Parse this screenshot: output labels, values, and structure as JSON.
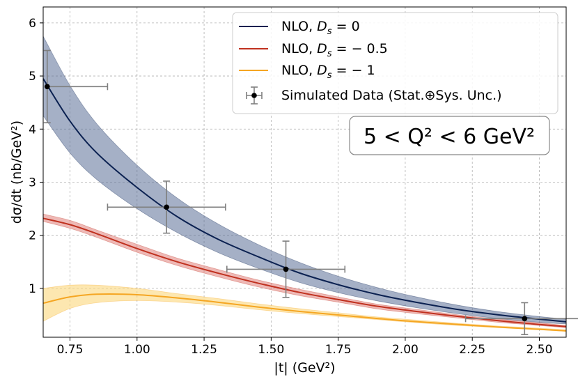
{
  "chart_data": {
    "type": "line",
    "xlabel": "|t| (GeV²)",
    "ylabel": "dσ/dt (nb/GeV²)",
    "xlim": [
      0.65,
      2.6
    ],
    "ylim": [
      0.08,
      6.3
    ],
    "xticks": [
      0.75,
      1.0,
      1.25,
      1.5,
      1.75,
      2.0,
      2.25,
      2.5
    ],
    "xtick_labels": [
      "0.75",
      "1.00",
      "1.25",
      "1.50",
      "1.75",
      "2.00",
      "2.25",
      "2.50"
    ],
    "yticks": [
      1,
      2,
      3,
      4,
      5,
      6
    ],
    "ytick_labels": [
      "1",
      "2",
      "3",
      "4",
      "5",
      "6"
    ],
    "grid": true,
    "legend_position": "top-right",
    "annotation": "5 < Q² < 6 GeV²",
    "series": [
      {
        "name": "NLO, Dₛ = 0",
        "legend": {
          "prefix": "NLO, ",
          "var": "D",
          "sub": "s",
          "rest": " = 0"
        },
        "color": "#0b2151",
        "band_color": "#5b6f98",
        "x": [
          0.65,
          0.75,
          0.85,
          1.0,
          1.15,
          1.3,
          1.45,
          1.6,
          1.75,
          1.9,
          2.05,
          2.2,
          2.35,
          2.5,
          2.6
        ],
        "y": [
          4.95,
          4.15,
          3.55,
          2.9,
          2.35,
          1.93,
          1.6,
          1.3,
          1.07,
          0.88,
          0.73,
          0.6,
          0.5,
          0.42,
          0.37
        ],
        "y_low": [
          4.25,
          3.55,
          3.05,
          2.5,
          2.05,
          1.68,
          1.38,
          1.12,
          0.92,
          0.76,
          0.63,
          0.52,
          0.43,
          0.36,
          0.33
        ],
        "y_high": [
          5.75,
          4.82,
          4.1,
          3.32,
          2.7,
          2.22,
          1.83,
          1.5,
          1.23,
          1.01,
          0.83,
          0.68,
          0.56,
          0.47,
          0.42
        ]
      },
      {
        "name": "NLO, Dₛ = −0.5",
        "legend": {
          "prefix": "NLO, ",
          "var": "D",
          "sub": "s",
          "rest": " = − 0.5"
        },
        "color": "#c0311f",
        "band_color": "#e28b85",
        "x": [
          0.65,
          0.75,
          0.85,
          1.0,
          1.15,
          1.3,
          1.45,
          1.6,
          1.75,
          1.9,
          2.05,
          2.2,
          2.35,
          2.5,
          2.6
        ],
        "y": [
          2.32,
          2.2,
          2.03,
          1.75,
          1.5,
          1.29,
          1.1,
          0.93,
          0.79,
          0.66,
          0.56,
          0.47,
          0.39,
          0.32,
          0.28
        ],
        "y_low": [
          2.26,
          2.13,
          1.96,
          1.68,
          1.43,
          1.22,
          1.03,
          0.87,
          0.74,
          0.61,
          0.52,
          0.44,
          0.36,
          0.3,
          0.26
        ],
        "y_high": [
          2.4,
          2.28,
          2.1,
          1.83,
          1.57,
          1.36,
          1.16,
          0.99,
          0.84,
          0.7,
          0.6,
          0.5,
          0.42,
          0.35,
          0.3
        ]
      },
      {
        "name": "NLO, Dₛ = −1",
        "legend": {
          "prefix": "NLO, ",
          "var": "D",
          "sub": "s",
          "rest": " = − 1"
        },
        "color": "#f5a623",
        "band_color": "#fbd77c",
        "x": [
          0.65,
          0.75,
          0.85,
          1.0,
          1.15,
          1.3,
          1.45,
          1.6,
          1.75,
          1.9,
          2.05,
          2.2,
          2.35,
          2.5,
          2.6
        ],
        "y": [
          0.72,
          0.84,
          0.89,
          0.88,
          0.82,
          0.74,
          0.65,
          0.57,
          0.5,
          0.43,
          0.37,
          0.32,
          0.27,
          0.23,
          0.2
        ],
        "y_low": [
          0.38,
          0.62,
          0.73,
          0.77,
          0.74,
          0.68,
          0.6,
          0.53,
          0.47,
          0.41,
          0.35,
          0.3,
          0.26,
          0.22,
          0.19
        ],
        "y_high": [
          1.0,
          1.06,
          1.06,
          1.0,
          0.9,
          0.81,
          0.71,
          0.62,
          0.54,
          0.46,
          0.4,
          0.34,
          0.29,
          0.25,
          0.22
        ]
      }
    ],
    "data_points": {
      "name": "Simulated Data (Stat.⊕Sys. Unc.)",
      "color": "#000000",
      "errorbar_color": "#7f7f7f",
      "points": [
        {
          "x": 0.665,
          "y": 4.8,
          "xerr_low": 0.0,
          "xerr_high": 0.225,
          "yerr": 0.68
        },
        {
          "x": 1.11,
          "y": 2.53,
          "xerr_low": 0.22,
          "xerr_high": 0.22,
          "yerr": 0.49
        },
        {
          "x": 1.555,
          "y": 1.36,
          "xerr_low": 0.22,
          "xerr_high": 0.22,
          "yerr": 0.53
        },
        {
          "x": 2.445,
          "y": 0.43,
          "xerr_low": 0.22,
          "xerr_high": 0.22,
          "yerr": 0.3
        }
      ]
    }
  }
}
